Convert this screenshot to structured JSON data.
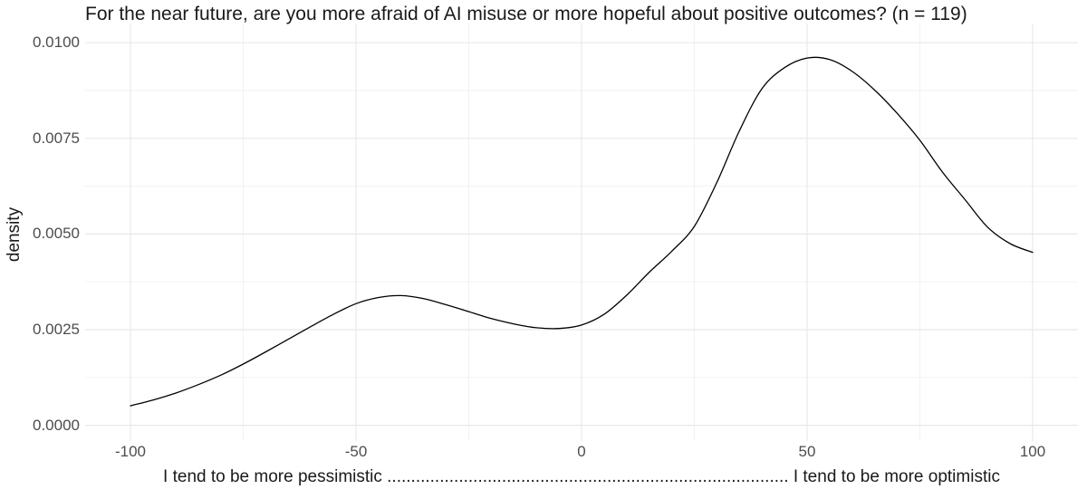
{
  "figure": {
    "title": "For the near future, are you more afraid of AI misuse or more hopeful about positive outcomes? (n = 119)"
  },
  "chart_data": {
    "type": "line",
    "subtype": "density",
    "title": "For the near future, are you more afraid of AI misuse or more hopeful about positive outcomes? (n = 119)",
    "xlabel": "I tend to be more pessimistic  ....................................................................................  I tend to be more optimistic",
    "ylabel": "density",
    "xlim": [
      -100,
      100
    ],
    "ylim": [
      0,
      0.01
    ],
    "x_ticks": [
      -100,
      -50,
      0,
      50,
      100
    ],
    "x_tick_labels": [
      "-100",
      "-50",
      "0",
      "50",
      "100"
    ],
    "x_minor_ticks": [
      -75,
      -25,
      25,
      75
    ],
    "y_ticks": [
      0,
      0.0025,
      0.005,
      0.0075,
      0.01
    ],
    "y_tick_labels": [
      "0.0000",
      "0.0025",
      "0.0050",
      "0.0075",
      "0.0100"
    ],
    "y_minor_ticks": [
      0.00125,
      0.00375,
      0.00625,
      0.00875
    ],
    "grid": "major and minor gridlines, white panel background",
    "legend": "none",
    "annotations": {
      "local_max": {
        "x": -43,
        "density": 0.0034
      },
      "local_min": {
        "x": -8,
        "density": 0.0025
      },
      "global_peak": {
        "x": 51,
        "density": 0.0096
      }
    },
    "colors": {
      "line": "#000000",
      "grid_major": "#e8e8e8",
      "grid_minor": "#f1f1f1",
      "tick_text": "#4d4d4d",
      "title_text": "#1a1a1a",
      "panel_background": "#ffffff"
    },
    "series": [
      {
        "name": "density",
        "color": "#000000",
        "points": [
          [
            -100,
            0.00051
          ],
          [
            -95,
            0.00066
          ],
          [
            -90,
            0.00084
          ],
          [
            -85,
            0.00106
          ],
          [
            -80,
            0.00131
          ],
          [
            -75,
            0.0016
          ],
          [
            -70,
            0.00192
          ],
          [
            -65,
            0.00225
          ],
          [
            -60,
            0.00258
          ],
          [
            -55,
            0.0029
          ],
          [
            -50,
            0.00318
          ],
          [
            -45,
            0.00334
          ],
          [
            -40,
            0.00339
          ],
          [
            -35,
            0.00331
          ],
          [
            -30,
            0.00315
          ],
          [
            -25,
            0.00297
          ],
          [
            -20,
            0.00279
          ],
          [
            -15,
            0.00265
          ],
          [
            -10,
            0.00255
          ],
          [
            -5,
            0.00253
          ],
          [
            0,
            0.00262
          ],
          [
            5,
            0.0029
          ],
          [
            10,
            0.0034
          ],
          [
            15,
            0.004
          ],
          [
            20,
            0.00455
          ],
          [
            25,
            0.0052
          ],
          [
            30,
            0.00635
          ],
          [
            35,
            0.0077
          ],
          [
            40,
            0.0088
          ],
          [
            45,
            0.00935
          ],
          [
            50,
            0.0096
          ],
          [
            55,
            0.00956
          ],
          [
            60,
            0.00925
          ],
          [
            65,
            0.00876
          ],
          [
            70,
            0.00815
          ],
          [
            75,
            0.00745
          ],
          [
            80,
            0.00662
          ],
          [
            85,
            0.0059
          ],
          [
            90,
            0.00518
          ],
          [
            95,
            0.00475
          ],
          [
            100,
            0.00452
          ]
        ]
      }
    ]
  }
}
